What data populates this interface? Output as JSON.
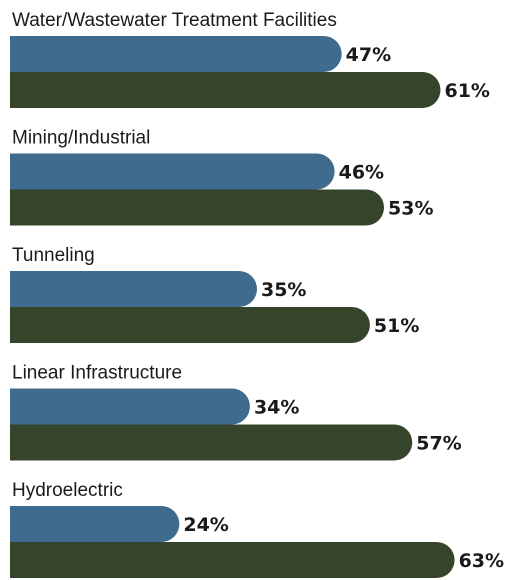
{
  "chart_data": {
    "type": "bar",
    "orientation": "horizontal",
    "categories": [
      "Water/Wastewater Treatment Facilities",
      "Mining/Industrial",
      "Tunneling",
      "Linear Infrastructure",
      "Hydroelectric"
    ],
    "series": [
      {
        "values": [
          47,
          46,
          35,
          34,
          24
        ],
        "color": "#3f6b8e"
      },
      {
        "values": [
          61,
          53,
          51,
          57,
          63
        ],
        "color": "#36442c"
      }
    ],
    "value_labels": [
      [
        "47%",
        "46%",
        "35%",
        "34%",
        "24%"
      ],
      [
        "61%",
        "53%",
        "51%",
        "57%",
        "63%"
      ]
    ],
    "unit": "%",
    "grid": false,
    "legend": "none"
  }
}
